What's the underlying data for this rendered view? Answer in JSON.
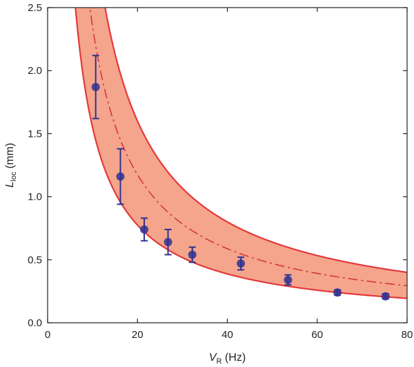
{
  "chart_data": {
    "type": "scatter",
    "title": "",
    "xlabel": {
      "main": "V",
      "sub": "R",
      "unit": " (Hz)"
    },
    "ylabel": {
      "main": "L",
      "sub": "loc",
      "unit": " (mm)"
    },
    "xlim": [
      0,
      80
    ],
    "ylim": [
      0,
      2.5
    ],
    "x_ticks": [
      0,
      20,
      40,
      60,
      80
    ],
    "x_tick_labels": [
      "0",
      "20",
      "40",
      "60",
      "80"
    ],
    "y_ticks": [
      0.0,
      0.5,
      1.0,
      1.5,
      2.0,
      2.5
    ],
    "y_tick_labels": [
      "0.0",
      "0.5",
      "1.0",
      "1.5",
      "2.0",
      "2.5"
    ],
    "grid": false,
    "series": [
      {
        "name": "measured",
        "kind": "points_with_error",
        "x": [
          10.7,
          16.2,
          21.5,
          26.8,
          32.2,
          43.0,
          53.5,
          64.5,
          75.2
        ],
        "y": [
          1.87,
          1.16,
          0.74,
          0.64,
          0.54,
          0.47,
          0.34,
          0.24,
          0.21
        ],
        "yerr": [
          0.25,
          0.22,
          0.09,
          0.1,
          0.06,
          0.05,
          0.04,
          0.02,
          0.02
        ]
      },
      {
        "name": "model-center",
        "kind": "dash_line",
        "formula": "y = k / x",
        "k": 23.5,
        "x_from": 6.5,
        "x_to": 80
      },
      {
        "name": "model-band",
        "kind": "band",
        "formula": "y = k / x",
        "k_lower": 15.5,
        "k_upper": 32.0,
        "x_from": 5.8,
        "x_to": 80
      }
    ]
  },
  "colors": {
    "band_fill": "#f4a58c",
    "band_edge": "#e3383b",
    "center_line": "#d5363d",
    "points": "#2e3192",
    "axis": "#231f20"
  }
}
